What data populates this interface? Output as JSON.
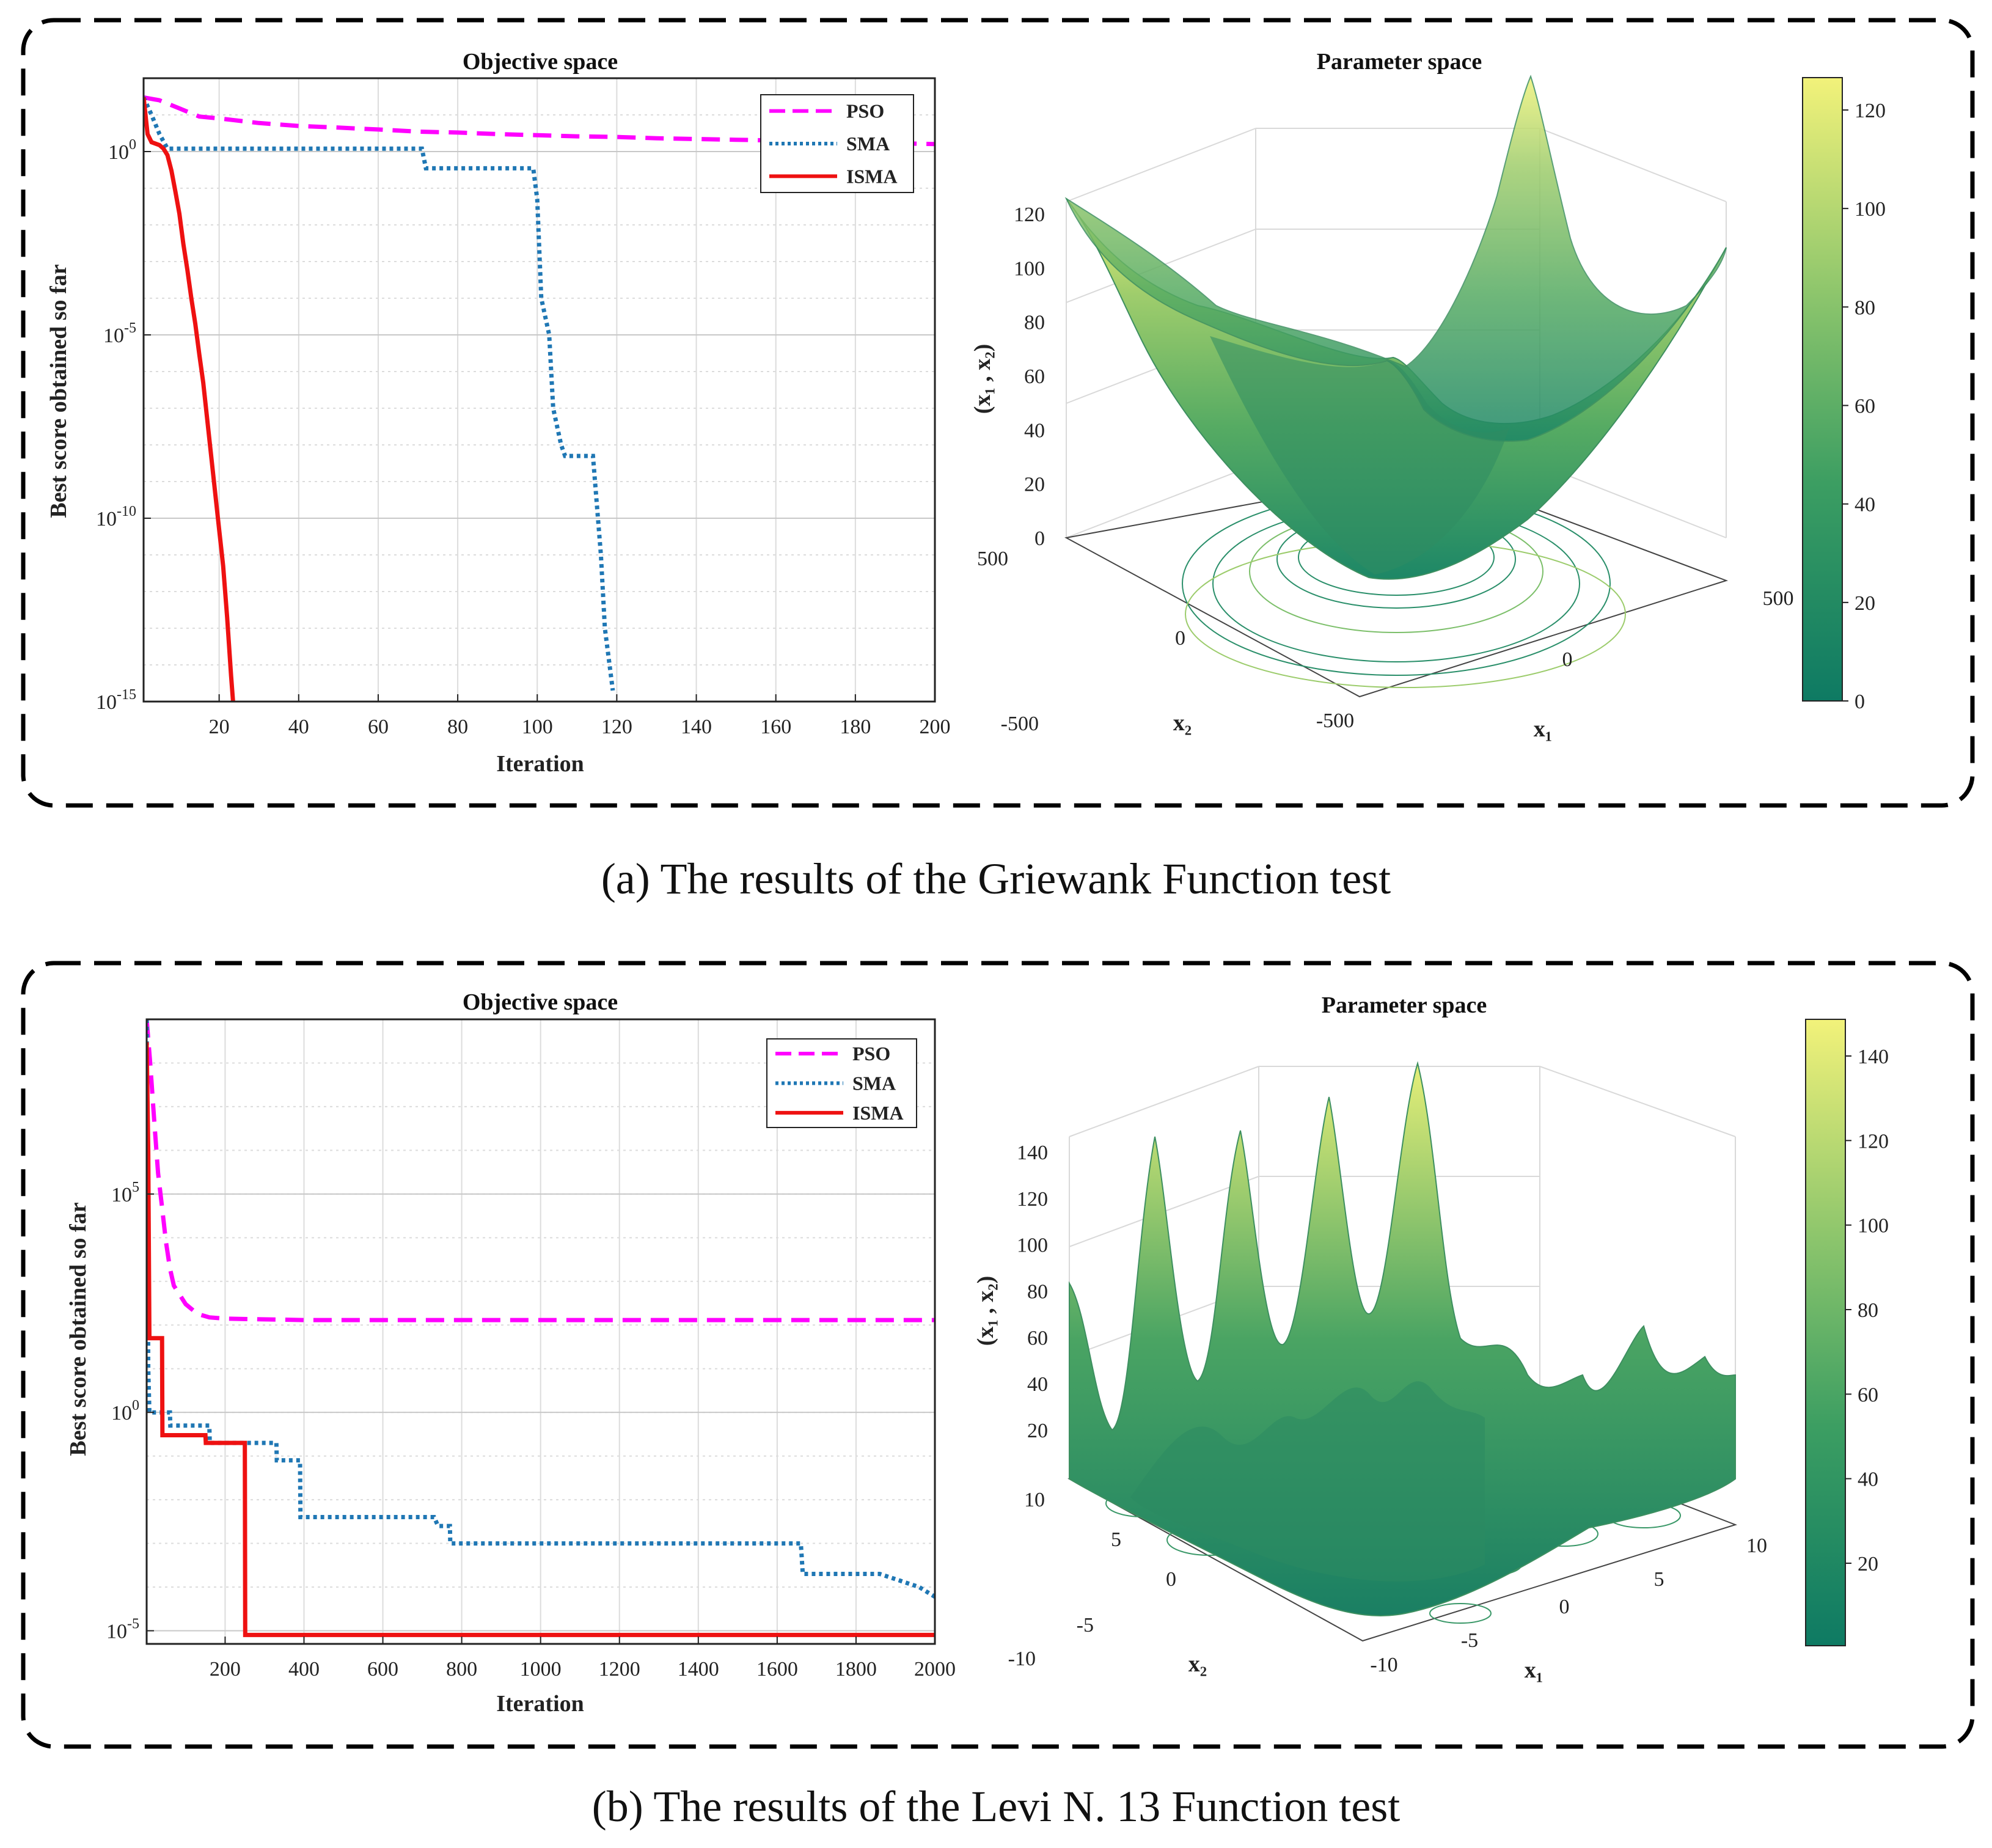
{
  "panels": [
    {
      "caption": "(a) The results of the Griewank Function test",
      "objective": {
        "title": "Objective space",
        "xlabel": "Iteration",
        "ylabel": "Best score obtained so far"
      },
      "parameter": {
        "title": "Parameter space",
        "zlabel": "(x₁ , x₂)",
        "xlabel": "x₁",
        "ylabel": "x₂",
        "colorbar_ticks": [
          "0",
          "20",
          "40",
          "60",
          "80",
          "100",
          "120"
        ],
        "z_ticks": [
          "0",
          "20",
          "40",
          "60",
          "80",
          "100",
          "120"
        ],
        "x1_ticks": [
          "-500",
          "0",
          "500"
        ],
        "x2_ticks": [
          "-500",
          "0",
          "500"
        ]
      }
    },
    {
      "caption": "(b) The results of the Levi N. 13 Function test",
      "objective": {
        "title": "Objective space",
        "xlabel": "Iteration",
        "ylabel": "Best score obtained so far"
      },
      "parameter": {
        "title": "Parameter space",
        "zlabel": "(x₁ , x₂)",
        "xlabel": "x₁",
        "ylabel": "x₂",
        "colorbar_ticks": [
          "20",
          "40",
          "60",
          "80",
          "100",
          "120",
          "140"
        ],
        "z_ticks": [
          "20",
          "40",
          "60",
          "80",
          "100",
          "120",
          "140"
        ],
        "x1_ticks": [
          "-10",
          "-5",
          "0",
          "5",
          "10"
        ],
        "x2_ticks": [
          "-10",
          "-5",
          "0",
          "5",
          "10"
        ]
      }
    }
  ],
  "chart_data": [
    {
      "type": "line",
      "title": "Objective space",
      "xlabel": "Iteration",
      "ylabel": "Best score obtained so far",
      "y_scale": "log",
      "xlim": [
        1,
        200
      ],
      "ylim": [
        1e-15,
        100
      ],
      "x_ticks": [
        20,
        40,
        60,
        80,
        100,
        120,
        140,
        160,
        180,
        200
      ],
      "y_ticks": [
        1,
        1e-05,
        1e-10,
        1e-15
      ],
      "y_tick_labels": [
        {
          "base": "10",
          "exp": "0"
        },
        {
          "base": "10",
          "exp": "-5"
        },
        {
          "base": "10",
          "exp": "-10"
        },
        {
          "base": "10",
          "exp": "-15"
        }
      ],
      "grid": true,
      "legend_position": "top-right",
      "series": [
        {
          "name": "PSO",
          "color": "#ff00ff",
          "style": "dashed",
          "points": [
            [
              1,
              30
            ],
            [
              5,
              25
            ],
            [
              10,
              15
            ],
            [
              15,
              9
            ],
            [
              20,
              8
            ],
            [
              30,
              6
            ],
            [
              40,
              5
            ],
            [
              50,
              4.5
            ],
            [
              60,
              4
            ],
            [
              70,
              3.5
            ],
            [
              80,
              3.3
            ],
            [
              90,
              3
            ],
            [
              100,
              2.8
            ],
            [
              110,
              2.6
            ],
            [
              120,
              2.5
            ],
            [
              130,
              2.3
            ],
            [
              140,
              2.2
            ],
            [
              150,
              2.1
            ],
            [
              160,
              2.0
            ],
            [
              170,
              1.9
            ],
            [
              180,
              1.8
            ],
            [
              190,
              1.7
            ],
            [
              200,
              1.6
            ]
          ]
        },
        {
          "name": "SMA",
          "color": "#1f77b4",
          "style": "dotted",
          "points": [
            [
              1,
              30
            ],
            [
              3,
              10
            ],
            [
              5,
              3
            ],
            [
              7,
              1.2
            ],
            [
              71,
              1.2
            ],
            [
              72,
              0.35
            ],
            [
              99,
              0.35
            ],
            [
              100,
              0.05
            ],
            [
              101,
              0.0001
            ],
            [
              103,
              1e-05
            ],
            [
              104,
              1e-07
            ],
            [
              106,
              1e-08
            ],
            [
              107,
              5e-09
            ],
            [
              114,
              5e-09
            ],
            [
              116,
              1e-11
            ],
            [
              117,
              1e-13
            ],
            [
              119,
              2e-15
            ]
          ]
        },
        {
          "name": "ISMA",
          "color": "#ee1111",
          "style": "solid",
          "points": [
            [
              1,
              30
            ],
            [
              2,
              3
            ],
            [
              3,
              1.8
            ],
            [
              5,
              1.5
            ],
            [
              6,
              1.2
            ],
            [
              7,
              0.8
            ],
            [
              8,
              0.3
            ],
            [
              9,
              0.08
            ],
            [
              10,
              0.02
            ],
            [
              11,
              0.003
            ],
            [
              12,
              0.0006
            ],
            [
              13,
              0.0001
            ],
            [
              14,
              2e-05
            ],
            [
              15,
              3e-06
            ],
            [
              16,
              5e-07
            ],
            [
              17,
              5e-08
            ],
            [
              18,
              5e-09
            ],
            [
              19,
              5e-10
            ],
            [
              20,
              5e-11
            ],
            [
              21,
              5e-12
            ],
            [
              22,
              2e-13
            ],
            [
              23,
              5e-15
            ],
            [
              23.5,
              1e-15
            ]
          ]
        }
      ]
    },
    {
      "type": "line",
      "title": "Objective space",
      "xlabel": "Iteration",
      "ylabel": "Best score obtained so far",
      "y_scale": "log",
      "xlim": [
        1,
        2000
      ],
      "ylim": [
        5e-06,
        1000000000.0
      ],
      "x_ticks": [
        200,
        400,
        600,
        800,
        1000,
        1200,
        1400,
        1600,
        1800,
        2000
      ],
      "y_ticks": [
        100000,
        1,
        1e-05
      ],
      "y_tick_labels": [
        {
          "base": "10",
          "exp": "5"
        },
        {
          "base": "10",
          "exp": "0"
        },
        {
          "base": "10",
          "exp": "-5"
        }
      ],
      "grid": true,
      "legend_position": "top-right",
      "series": [
        {
          "name": "PSO",
          "color": "#ff00ff",
          "style": "dashed",
          "points": [
            [
              1,
              1000000000.0
            ],
            [
              10,
              100000000.0
            ],
            [
              20,
              5000000.0
            ],
            [
              30,
              300000.0
            ],
            [
              40,
              50000.0
            ],
            [
              50,
              8000
            ],
            [
              60,
              2000
            ],
            [
              70,
              800
            ],
            [
              100,
              300
            ],
            [
              130,
              180
            ],
            [
              160,
              150
            ],
            [
              200,
              140
            ],
            [
              400,
              130
            ],
            [
              1000,
              130
            ],
            [
              2000,
              130
            ]
          ]
        },
        {
          "name": "SMA",
          "color": "#1f77b4",
          "style": "dotted",
          "points": [
            [
              1,
              1000000000.0
            ],
            [
              3,
              1000000.0
            ],
            [
              5,
              10
            ],
            [
              8,
              1
            ],
            [
              60,
              1
            ],
            [
              61,
              0.5
            ],
            [
              160,
              0.5
            ],
            [
              161,
              0.2
            ],
            [
              330,
              0.2
            ],
            [
              331,
              0.08
            ],
            [
              390,
              0.08
            ],
            [
              391,
              0.004
            ],
            [
              730,
              0.004
            ],
            [
              740,
              0.0025
            ],
            [
              770,
              0.0025
            ],
            [
              771,
              0.001
            ],
            [
              1660,
              0.001
            ],
            [
              1665,
              0.0002
            ],
            [
              1860,
              0.0002
            ],
            [
              1960,
              0.0001
            ],
            [
              2000,
              6e-05
            ]
          ]
        },
        {
          "name": "ISMA",
          "color": "#ee1111",
          "style": "solid",
          "points": [
            [
              1,
              300000000.0
            ],
            [
              5,
              1000000.0
            ],
            [
              8,
              50
            ],
            [
              40,
              50
            ],
            [
              41,
              0.3
            ],
            [
              150,
              0.3
            ],
            [
              151,
              0.2
            ],
            [
              250,
              0.2
            ],
            [
              251,
              8e-06
            ],
            [
              2000,
              8e-06
            ]
          ]
        }
      ]
    }
  ]
}
